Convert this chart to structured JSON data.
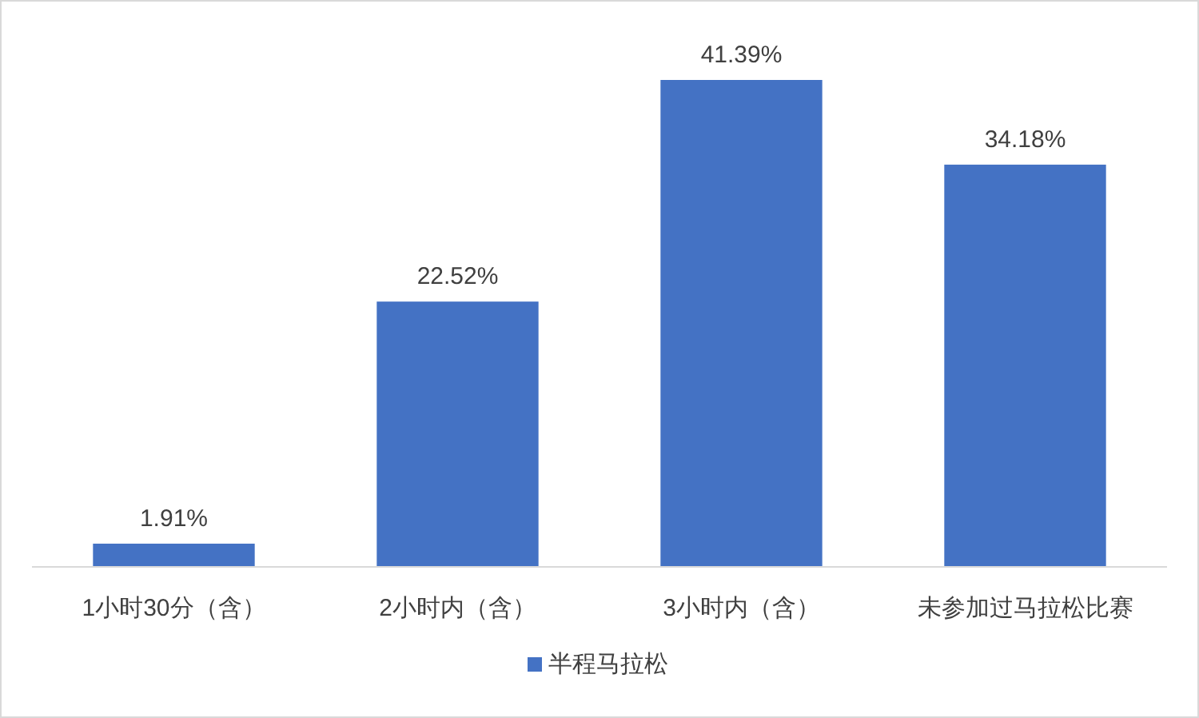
{
  "chart_data": {
    "type": "bar",
    "categories": [
      "1小时30分（含）",
      "2小时内（含）",
      "3小时内（含）",
      "未参加过马拉松比赛"
    ],
    "series": [
      {
        "name": "半程马拉松",
        "color": "#4472c4",
        "values": [
          1.91,
          22.52,
          41.39,
          34.18
        ],
        "value_labels": [
          "1.91%",
          "22.52%",
          "41.39%",
          "34.18%"
        ]
      }
    ],
    "legend": "bottom"
  }
}
